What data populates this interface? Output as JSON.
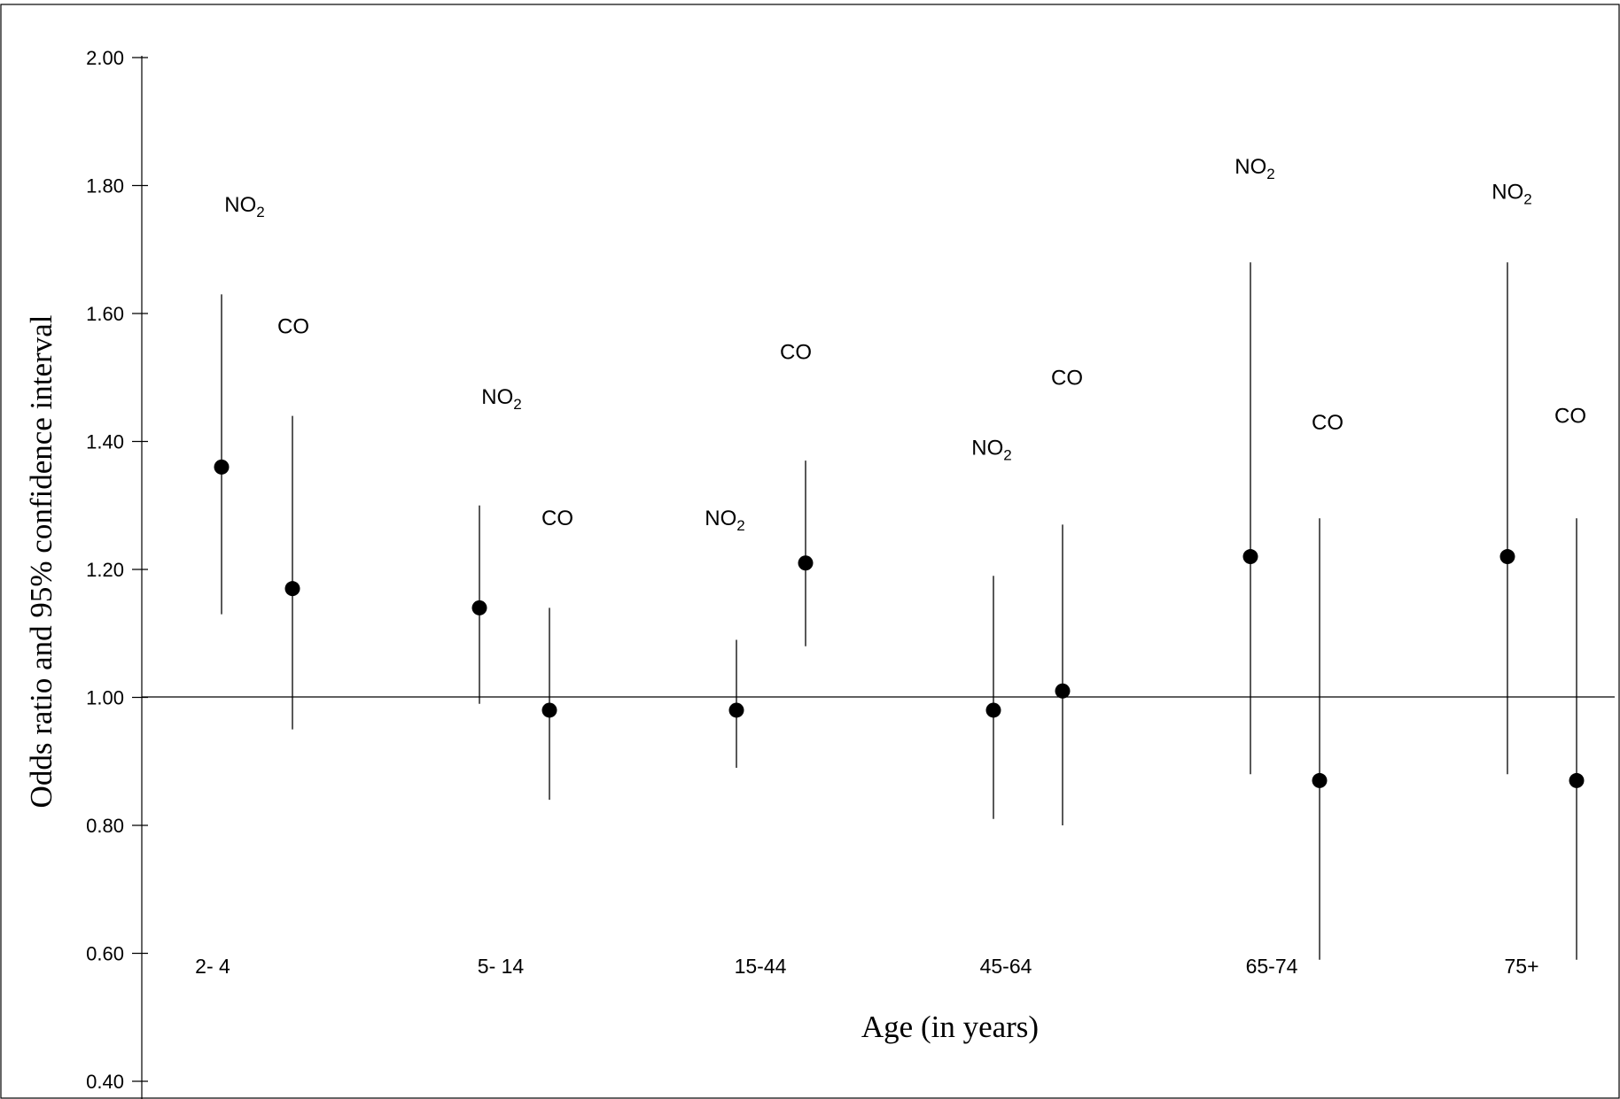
{
  "chart_data": {
    "type": "scatter",
    "subtype": "point estimates with 95% confidence intervals",
    "ylabel": "Odds ratio and 95% confidence interval",
    "xlabel": "Age (in years)",
    "ylim": [
      0.4,
      2.0
    ],
    "yticks": [
      "0.40",
      "0.60",
      "0.80",
      "1.00",
      "1.20",
      "1.40",
      "1.60",
      "1.80",
      "2.00"
    ],
    "reference_line": 1.0,
    "grid": false,
    "categories": [
      "2- 4",
      "5- 14",
      "15-44",
      "45-64",
      "65-74",
      "75+"
    ],
    "series": [
      {
        "name": "NO2",
        "label_main": "NO",
        "label_sub": "2",
        "estimate": [
          1.36,
          1.14,
          0.98,
          0.98,
          1.22,
          1.22
        ],
        "lower": [
          1.13,
          0.99,
          0.89,
          0.81,
          0.88,
          0.88
        ],
        "upper": [
          1.63,
          1.3,
          1.09,
          1.19,
          1.68,
          1.68
        ],
        "label_y": [
          1.77,
          1.47,
          1.28,
          1.39,
          1.83,
          1.79
        ]
      },
      {
        "name": "CO",
        "label_main": "CO",
        "label_sub": "",
        "estimate": [
          1.17,
          0.98,
          1.21,
          1.01,
          0.87,
          0.87
        ],
        "lower": [
          0.95,
          0.84,
          1.08,
          0.8,
          0.59,
          0.59
        ],
        "upper": [
          1.44,
          1.14,
          1.37,
          1.27,
          1.28,
          1.28
        ],
        "label_y": [
          1.58,
          1.28,
          1.54,
          1.5,
          1.43,
          1.44
        ]
      }
    ]
  }
}
